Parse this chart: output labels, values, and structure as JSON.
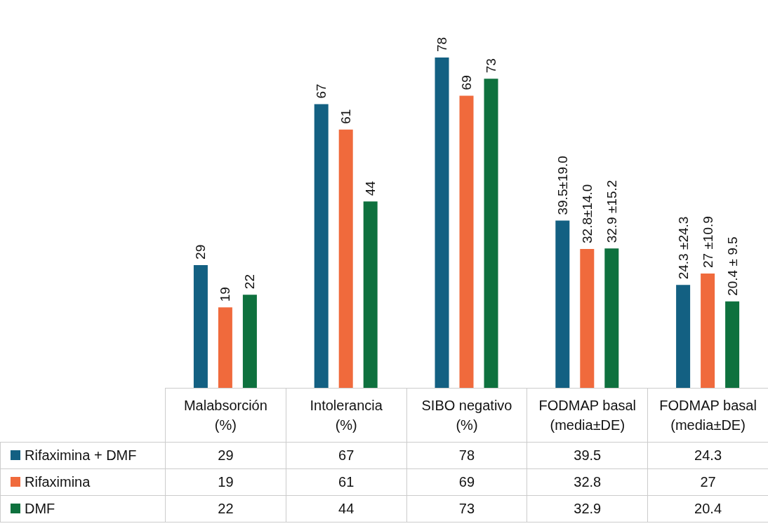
{
  "chart_data": {
    "type": "bar",
    "categories": [
      "Malabsorción\n(%)",
      "Intolerancia\n(%)",
      "SIBO negativo\n(%)",
      "FODMAP basal\n(media±DE)",
      "FODMAP basal\n(media±DE)"
    ],
    "series": [
      {
        "name": "Rifaximina + DMF",
        "color": "#136082",
        "values": [
          29,
          67,
          78,
          39.5,
          24.3
        ]
      },
      {
        "name": "Rifaximina",
        "color": "#f06a3c",
        "values": [
          19,
          61,
          69,
          32.8,
          27
        ]
      },
      {
        "name": "DMF",
        "color": "#0e713e",
        "values": [
          22,
          44,
          73,
          32.9,
          20.4
        ]
      }
    ],
    "annotations": [
      "29",
      "19",
      "22",
      "67",
      "61",
      "44",
      "78",
      "69",
      "73",
      "39.5±19.0",
      "32.8±14.0",
      "32.9 ±15.2",
      "24.3 ±24.3",
      "27 ±10.9",
      "20.4 ± 9.5"
    ],
    "data_labels": true,
    "legend": "bottom left"
  }
}
